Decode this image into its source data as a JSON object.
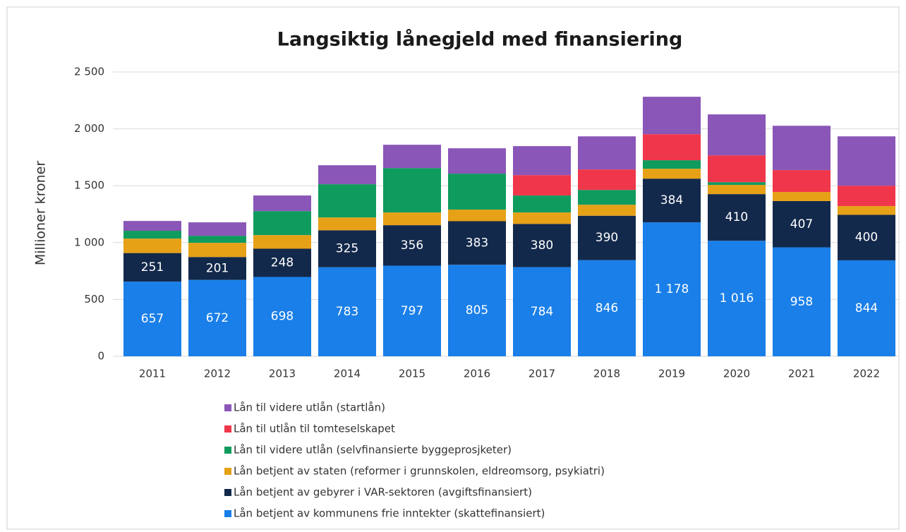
{
  "chart_data": {
    "type": "stacked_bar",
    "title": "Langsiktig lånegjeld med finansiering",
    "y_label": "Millioner kroner",
    "categories": [
      "2011",
      "2012",
      "2013",
      "2014",
      "2015",
      "2016",
      "2017",
      "2018",
      "2019",
      "2020",
      "2021",
      "2022"
    ],
    "series": [
      {
        "name": "Lån betjent av kommunens frie inntekter (skattefinansiert)",
        "color": "#1a7fe8",
        "values": [
          657,
          672,
          698,
          783,
          797,
          805,
          784,
          846,
          1178,
          1016,
          958,
          844
        ],
        "value_labels": [
          "657",
          "672",
          "698",
          "783",
          "797",
          "805",
          "784",
          "846",
          "1 178",
          "1 016",
          "958",
          "844"
        ]
      },
      {
        "name": "Lån betjent av gebyrer i VAR-sektoren (avgiftsfinansiert)",
        "color": "#13294b",
        "values": [
          251,
          201,
          248,
          325,
          356,
          383,
          380,
          390,
          384,
          410,
          407,
          400
        ],
        "value_labels": [
          "251",
          "201",
          "248",
          "325",
          "356",
          "383",
          "380",
          "390",
          "384",
          "410",
          "407",
          "400"
        ]
      },
      {
        "name": "Lån betjent av staten (reformer i grunnskolen, eldreomsorg, psykiatri)",
        "color": "#e6a117",
        "values": [
          127,
          125,
          120,
          113,
          112,
          102,
          101,
          97,
          87,
          81,
          80,
          77
        ]
      },
      {
        "name": "Lån til videre utlån (selvfinansierte byggeprosjketer)",
        "color": "#0f9b5e",
        "values": [
          69,
          62,
          211,
          292,
          390,
          316,
          149,
          130,
          75,
          24,
          0,
          0
        ]
      },
      {
        "name": "Lån til utlån til tomteselskapet",
        "color": "#f0364a",
        "values": [
          0,
          0,
          0,
          0,
          0,
          0,
          179,
          180,
          229,
          236,
          192,
          179
        ]
      },
      {
        "name": "Lån til videre utlån (startlån)",
        "color": "#8a56b8",
        "values": [
          86,
          118,
          137,
          167,
          205,
          223,
          255,
          291,
          329,
          360,
          390,
          434
        ]
      }
    ],
    "ylim": [
      0,
      2500
    ],
    "yticks": [
      0,
      500,
      {
        "value": 1000,
        "label": "1 000"
      },
      {
        "value": 1500,
        "label": "1 500"
      },
      {
        "value": 2000,
        "label": "2 000"
      },
      {
        "value": 2500,
        "label": "2 500"
      }
    ],
    "grid": true
  }
}
